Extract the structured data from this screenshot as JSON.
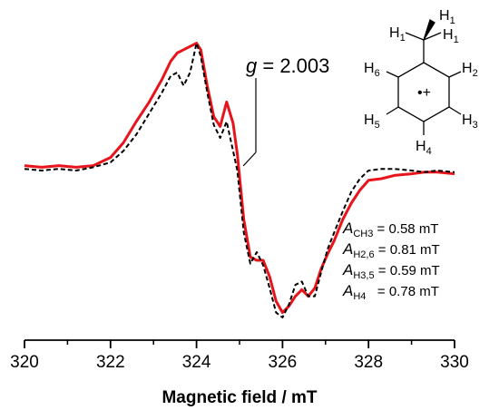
{
  "chart_data": {
    "type": "line",
    "title": "",
    "xlabel": "Magnetic field / mT",
    "ylabel": "",
    "xlim": [
      320,
      330
    ],
    "ylim": [
      -1.0,
      1.0
    ],
    "x_ticks": [
      "320",
      "322",
      "324",
      "326",
      "328",
      "330"
    ],
    "grid": false,
    "series": [
      {
        "style": "solid",
        "color": "#e8141b",
        "x": [
          320.0,
          320.4,
          320.8,
          321.2,
          321.6,
          322.0,
          322.3,
          322.6,
          322.9,
          323.2,
          323.4,
          323.55,
          323.7,
          323.85,
          324.0,
          324.1,
          324.25,
          324.4,
          324.55,
          324.7,
          324.85,
          324.95,
          325.1,
          325.25,
          325.4,
          325.55,
          325.7,
          325.85,
          326.0,
          326.15,
          326.3,
          326.45,
          326.6,
          326.75,
          326.9,
          327.05,
          327.2,
          327.4,
          327.6,
          327.8,
          328.0,
          328.3,
          328.6,
          329.0,
          329.3,
          329.6,
          330.0
        ],
        "values": [
          0.03,
          0.02,
          0.03,
          0.02,
          0.03,
          0.08,
          0.17,
          0.3,
          0.42,
          0.56,
          0.67,
          0.72,
          0.74,
          0.76,
          0.78,
          0.74,
          0.52,
          0.33,
          0.27,
          0.42,
          0.29,
          0.1,
          -0.3,
          -0.53,
          -0.55,
          -0.55,
          -0.65,
          -0.8,
          -0.87,
          -0.83,
          -0.77,
          -0.73,
          -0.77,
          -0.72,
          -0.6,
          -0.51,
          -0.43,
          -0.3,
          -0.2,
          -0.12,
          -0.06,
          -0.05,
          -0.03,
          -0.02,
          -0.01,
          -0.01,
          -0.02
        ]
      },
      {
        "style": "dashed",
        "color": "#000000",
        "x": [
          320.0,
          320.4,
          320.8,
          321.2,
          321.6,
          322.0,
          322.3,
          322.6,
          322.9,
          323.2,
          323.4,
          323.55,
          323.7,
          323.85,
          324.0,
          324.1,
          324.25,
          324.4,
          324.55,
          324.7,
          324.85,
          324.95,
          325.1,
          325.25,
          325.4,
          325.55,
          325.7,
          325.85,
          326.0,
          326.15,
          326.3,
          326.45,
          326.6,
          326.75,
          326.9,
          327.05,
          327.2,
          327.4,
          327.6,
          327.8,
          328.0,
          328.3,
          328.6,
          329.0,
          329.3,
          329.6,
          330.0
        ],
        "values": [
          0.01,
          0.0,
          0.01,
          0.0,
          0.02,
          0.05,
          0.12,
          0.22,
          0.35,
          0.48,
          0.58,
          0.6,
          0.52,
          0.6,
          0.78,
          0.7,
          0.48,
          0.28,
          0.2,
          0.3,
          0.12,
          0.0,
          -0.38,
          -0.57,
          -0.5,
          -0.58,
          -0.72,
          -0.87,
          -0.9,
          -0.82,
          -0.7,
          -0.68,
          -0.77,
          -0.77,
          -0.62,
          -0.48,
          -0.38,
          -0.25,
          -0.13,
          -0.05,
          0.0,
          0.01,
          0.01,
          0.0,
          -0.01,
          0.0,
          -0.01
        ]
      }
    ],
    "annotations": {
      "g_symbol": "g",
      "g_value": " = 2.003",
      "couplings": [
        {
          "symbol": "A",
          "sub": "CH3",
          "value": " = 0.58 mT"
        },
        {
          "symbol": "A",
          "sub": "H2,6",
          "value": " = 0.81 mT"
        },
        {
          "symbol": "A",
          "sub": "H3,5",
          "value": " = 0.59 mT"
        },
        {
          "symbol": "A",
          "sub": "H4",
          "value": "   = 0.78 mT"
        }
      ]
    }
  },
  "structure": {
    "h1_labels": [
      "H",
      "1",
      "H",
      "1"
    ],
    "h1_top": [
      "H",
      "1"
    ],
    "ring_labels": [
      {
        "key": "h6",
        "letter": "H",
        "num": "6"
      },
      {
        "key": "h2",
        "letter": "H",
        "num": "2"
      },
      {
        "key": "h5",
        "letter": "H",
        "num": "5"
      },
      {
        "key": "h3",
        "letter": "H",
        "num": "3"
      },
      {
        "key": "h4",
        "letter": "H",
        "num": "4"
      }
    ],
    "radical_cation": "•+"
  }
}
